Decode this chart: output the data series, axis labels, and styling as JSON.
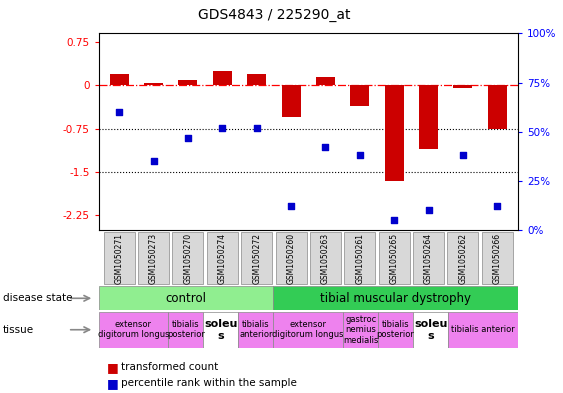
{
  "title": "GDS4843 / 225290_at",
  "samples": [
    "GSM1050271",
    "GSM1050273",
    "GSM1050270",
    "GSM1050274",
    "GSM1050272",
    "GSM1050260",
    "GSM1050263",
    "GSM1050261",
    "GSM1050265",
    "GSM1050264",
    "GSM1050262",
    "GSM1050266"
  ],
  "bar_values": [
    0.2,
    0.05,
    0.1,
    0.25,
    0.2,
    -0.55,
    0.15,
    -0.35,
    -1.65,
    -1.1,
    -0.05,
    -0.75
  ],
  "scatter_values": [
    60,
    35,
    47,
    52,
    52,
    12,
    42,
    38,
    5,
    10,
    38,
    12
  ],
  "ylim_left": [
    -2.5,
    0.9
  ],
  "ylim_right": [
    0,
    100
  ],
  "yticks_left": [
    0.75,
    0,
    -0.75,
    -1.5,
    -2.25
  ],
  "yticks_right": [
    100,
    75,
    50,
    25,
    0
  ],
  "hline_y": 0,
  "dotted_lines": [
    -0.75,
    -1.5
  ],
  "bar_color": "#cc0000",
  "scatter_color": "#0000cc",
  "control_span": [
    0,
    5
  ],
  "disease_span": [
    5,
    12
  ],
  "control_label": "control",
  "disease_label": "tibial muscular dystrophy",
  "control_color": "#90ee90",
  "disease_color": "#33cc55",
  "tissues": [
    {
      "label": "extensor\ndigitorum longus",
      "span": [
        0,
        2
      ],
      "soleus": false
    },
    {
      "label": "tibialis\nposterior",
      "span": [
        2,
        3
      ],
      "soleus": false
    },
    {
      "label": "soleu\ns",
      "span": [
        3,
        4
      ],
      "soleus": true
    },
    {
      "label": "tibialis\nanterior",
      "span": [
        4,
        5
      ],
      "soleus": false
    },
    {
      "label": "extensor\ndigitorum longus",
      "span": [
        5,
        7
      ],
      "soleus": false
    },
    {
      "label": "gastroc\nnemius\nmedialis",
      "span": [
        7,
        8
      ],
      "soleus": false
    },
    {
      "label": "tibialis\nposterior",
      "span": [
        8,
        9
      ],
      "soleus": false
    },
    {
      "label": "soleu\ns",
      "span": [
        9,
        10
      ],
      "soleus": true
    },
    {
      "label": "tibialis anterior",
      "span": [
        10,
        12
      ],
      "soleus": false
    }
  ],
  "tissue_color": "#ee82ee",
  "soleus_color": "#ffffff",
  "legend_bar_label": "transformed count",
  "legend_scatter_label": "percentile rank within the sample",
  "sample_box_color": "#d8d8d8"
}
